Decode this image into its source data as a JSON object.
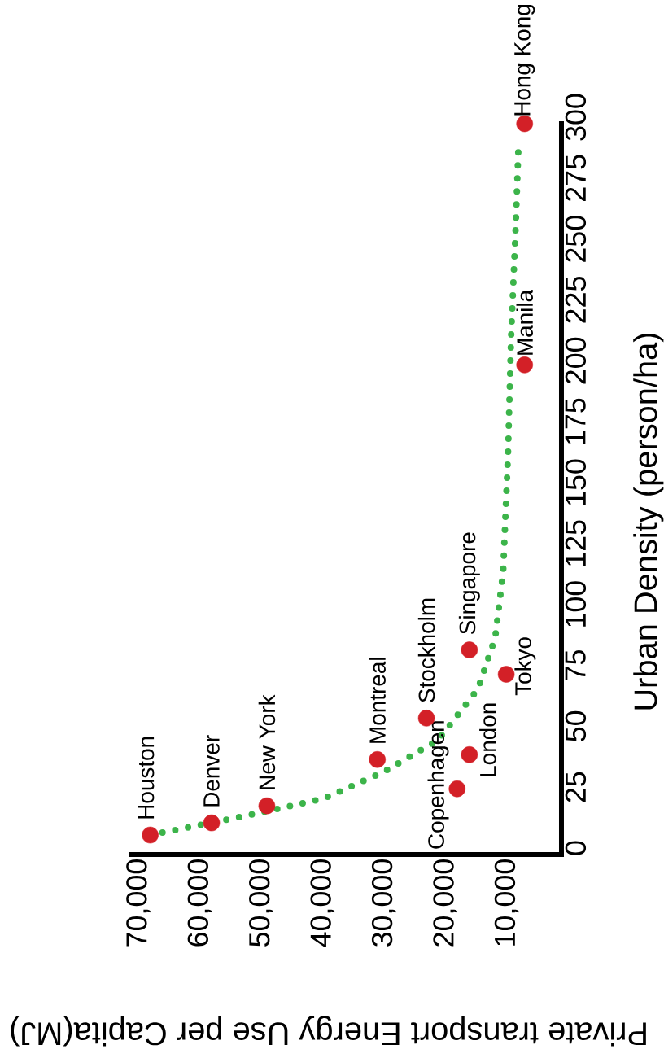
{
  "chart_data": {
    "type": "scatter",
    "xlabel": "Private transport Energy Use per Capita(MJ)",
    "ylabel": "Urban Density (person/ha)",
    "xlim": [
      70000,
      0
    ],
    "ylim": [
      0,
      300
    ],
    "yticks": [
      0,
      25,
      50,
      75,
      100,
      125,
      150,
      175,
      200,
      225,
      250,
      275,
      300
    ],
    "xticks": [
      {
        "value": 70000,
        "label": "70,000"
      },
      {
        "value": 60000,
        "label": "60,000"
      },
      {
        "value": 50000,
        "label": "50,000"
      },
      {
        "value": 40000,
        "label": "40,000"
      },
      {
        "value": 30000,
        "label": "30,000"
      },
      {
        "value": 20000,
        "label": "20,000"
      },
      {
        "value": 10000,
        "label": "10,000"
      }
    ],
    "grid": false,
    "series": [
      {
        "type": "scatter",
        "color": "#d32027",
        "marker": "circle",
        "x": [
          67000,
          57000,
          48000,
          30000,
          17000,
          15000,
          22000,
          15000,
          9000,
          6000,
          6000
        ],
        "values": [
          8,
          13,
          20,
          39,
          27,
          41,
          56,
          84,
          74,
          201,
          300
        ]
      },
      {
        "type": "line",
        "color": "#3cb44a",
        "marker": "none",
        "line_style": "dotted",
        "x": [
          65000,
          51200,
          38700,
          28900,
          20100,
          13600,
          10800,
          9500,
          8700,
          8200,
          7500,
          7000
        ],
        "values": [
          9,
          16,
          23,
          34,
          47,
          68,
          89,
          116,
          165,
          213,
          255,
          291
        ]
      }
    ],
    "annotations": [
      {
        "text": "Houston",
        "x": 67000,
        "y": 8
      },
      {
        "text": "Denver",
        "x": 57000,
        "y": 13
      },
      {
        "text": "New York",
        "x": 48000,
        "y": 20
      },
      {
        "text": "Montreal",
        "x": 30000,
        "y": 39
      },
      {
        "text": "Copenhagen",
        "x": 17000,
        "y": 27
      },
      {
        "text": "London",
        "x": 15000,
        "y": 41
      },
      {
        "text": "Stockholm",
        "x": 22000,
        "y": 56
      },
      {
        "text": "Singapore",
        "x": 15000,
        "y": 84
      },
      {
        "text": "Tokyo",
        "x": 9000,
        "y": 74
      },
      {
        "text": "Manila",
        "x": 6000,
        "y": 201
      },
      {
        "text": "Hong Kong",
        "x": 6000,
        "y": 300
      }
    ]
  }
}
